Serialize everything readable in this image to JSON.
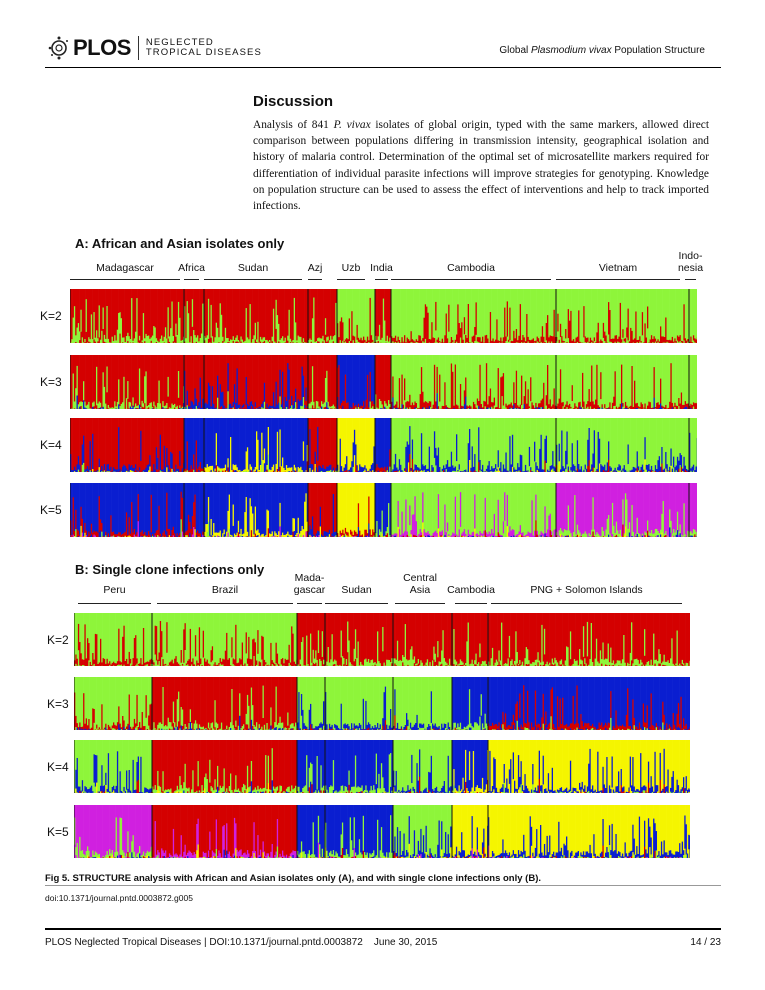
{
  "header": {
    "logo_text": "PLOS",
    "journal_line1": "NEGLECTED",
    "journal_line2": "TROPICAL DISEASES",
    "running_title_pre": "Global ",
    "running_title_italic": "Plasmodium vivax",
    "running_title_post": " Population Structure"
  },
  "discussion": {
    "title": "Discussion",
    "body_pre": "Analysis of 841 ",
    "body_italic": "P. vivax",
    "body_post": " isolates of global origin, typed with the same markers, allowed direct comparison between populations differing in transmission intensity, geographical isolation and history of malaria control. Determination of the optimal set of microsatellite markers required for differentiation of individual parasite infections will improve strategies for genotyping. Knowledge on population structure can be used to assess the effect of interventions and help to track imported infections."
  },
  "figure": {
    "caption": "Fig 5. STRUCTURE analysis with African and Asian isolates only (A), and with single clone infections only (B).",
    "doi": "doi:10.1371/journal.pntd.0003872.g005"
  },
  "footer": {
    "text": "PLOS Neglected Tropical Diseases | DOI:10.1371/journal.pntd.0003872    June 30, 2015",
    "page": "14 / 23"
  },
  "chart_data": [
    {
      "type": "bar",
      "subtype": "stacked-ancestry",
      "title": "A: African and Asian isolates only",
      "cluster_colors": [
        "#d40000",
        "#8ef53a",
        "#0a1ed0",
        "#f5f500",
        "#d020e0"
      ],
      "k_labels": [
        "K=2",
        "K=3",
        "K=4",
        "K=5"
      ],
      "groups": [
        "Madagascar",
        "Africa",
        "Sudan",
        "Azj",
        "Uzb",
        "India",
        "Cambodia",
        "Vietnam",
        "Indo-\nnesia"
      ],
      "dominant_clusters": {
        "K=2": [
          [
            0,
            1
          ],
          [
            0,
            1
          ],
          [
            0,
            1
          ],
          [
            0,
            1
          ],
          [
            1,
            0
          ],
          [
            0,
            1
          ],
          [
            1,
            0
          ],
          [
            1,
            0
          ],
          [
            1,
            0
          ]
        ],
        "K=3": [
          [
            0,
            1
          ],
          [
            0,
            2
          ],
          [
            0,
            2
          ],
          [
            0,
            1
          ],
          [
            2,
            0
          ],
          [
            0,
            1
          ],
          [
            1,
            0
          ],
          [
            1,
            0
          ],
          [
            1,
            0
          ]
        ],
        "K=4": [
          [
            0,
            2
          ],
          [
            2,
            0
          ],
          [
            2,
            3
          ],
          [
            0,
            2
          ],
          [
            3,
            2
          ],
          [
            2,
            0
          ],
          [
            1,
            2
          ],
          [
            1,
            2
          ],
          [
            1,
            2
          ]
        ],
        "K=5": [
          [
            2,
            0
          ],
          [
            2,
            0
          ],
          [
            2,
            3
          ],
          [
            0,
            2
          ],
          [
            3,
            0
          ],
          [
            2,
            1
          ],
          [
            1,
            4
          ],
          [
            4,
            1
          ],
          [
            4,
            1
          ]
        ]
      }
    },
    {
      "type": "bar",
      "subtype": "stacked-ancestry",
      "title": "B: Single clone infections only",
      "cluster_colors": [
        "#d40000",
        "#8ef53a",
        "#0a1ed0",
        "#f5f500",
        "#d020e0"
      ],
      "k_labels": [
        "K=2",
        "K=3",
        "K=4",
        "K=5"
      ],
      "groups": [
        "Peru",
        "Brazil",
        "Mada-\ngascar",
        "Sudan",
        "Central\nAsia",
        "Cambodia",
        "PNG + Solomon Islands"
      ],
      "dominant_clusters": {
        "K=2": [
          [
            1,
            0
          ],
          [
            1,
            0
          ],
          [
            0,
            1
          ],
          [
            0,
            1
          ],
          [
            0,
            1
          ],
          [
            0,
            1
          ],
          [
            0,
            1
          ]
        ],
        "K=3": [
          [
            1,
            0
          ],
          [
            0,
            1
          ],
          [
            1,
            2
          ],
          [
            1,
            2
          ],
          [
            1,
            2
          ],
          [
            2,
            1
          ],
          [
            2,
            0
          ]
        ],
        "K=4": [
          [
            1,
            2
          ],
          [
            0,
            1
          ],
          [
            2,
            1
          ],
          [
            2,
            1
          ],
          [
            1,
            2
          ],
          [
            2,
            3
          ],
          [
            3,
            2
          ]
        ],
        "K=5": [
          [
            4,
            1
          ],
          [
            0,
            4
          ],
          [
            2,
            1
          ],
          [
            2,
            1
          ],
          [
            1,
            2
          ],
          [
            3,
            2
          ],
          [
            3,
            2
          ]
        ]
      }
    }
  ]
}
